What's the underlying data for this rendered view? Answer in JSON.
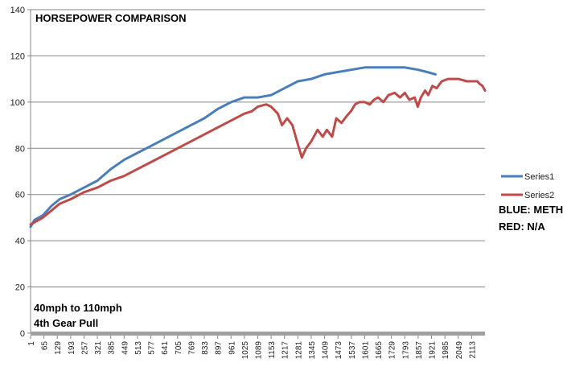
{
  "chart_data": {
    "type": "line",
    "title": "HORSEPOWER COMPARISON",
    "annotations": [
      "40mph to 110mph",
      "4th Gear Pull"
    ],
    "side_notes": [
      "BLUE: METH",
      "RED: N/A"
    ],
    "ylim": [
      0,
      140
    ],
    "y_ticks": [
      0,
      20,
      40,
      60,
      80,
      100,
      120,
      140
    ],
    "xlim": [
      1,
      2177
    ],
    "x_ticks": [
      "1",
      "65",
      "129",
      "193",
      "257",
      "321",
      "385",
      "449",
      "513",
      "577",
      "641",
      "705",
      "769",
      "833",
      "897",
      "961",
      "1025",
      "1089",
      "1153",
      "1217",
      "1281",
      "1345",
      "1409",
      "1473",
      "1537",
      "1601",
      "1665",
      "1729",
      "1793",
      "1857",
      "1921",
      "1985",
      "2049",
      "2113"
    ],
    "grid": "horizontal",
    "legend_position": "right",
    "series": [
      {
        "name": "Series1",
        "color": "#4a7ebb",
        "x": [
          1,
          20,
          60,
          100,
          140,
          193,
          257,
          321,
          385,
          449,
          513,
          577,
          641,
          705,
          769,
          833,
          897,
          961,
          1025,
          1089,
          1153,
          1217,
          1281,
          1345,
          1409,
          1473,
          1537,
          1601,
          1665,
          1729,
          1793,
          1857,
          1900,
          1940
        ],
        "values": [
          46,
          49,
          51,
          55,
          58,
          60,
          63,
          66,
          71,
          75,
          78,
          81,
          84,
          87,
          90,
          93,
          97,
          100,
          102,
          102,
          103,
          106,
          109,
          110,
          112,
          113,
          114,
          115,
          115,
          115,
          115,
          114,
          113,
          112
        ]
      },
      {
        "name": "Series2",
        "color": "#be4b48",
        "x": [
          1,
          20,
          60,
          100,
          140,
          193,
          257,
          321,
          385,
          449,
          513,
          577,
          641,
          705,
          769,
          833,
          897,
          961,
          1025,
          1060,
          1089,
          1130,
          1153,
          1185,
          1205,
          1230,
          1255,
          1280,
          1300,
          1320,
          1345,
          1375,
          1400,
          1420,
          1445,
          1465,
          1490,
          1515,
          1535,
          1555,
          1575,
          1601,
          1625,
          1645,
          1665,
          1690,
          1715,
          1745,
          1770,
          1793,
          1815,
          1840,
          1855,
          1870,
          1890,
          1905,
          1925,
          1945,
          1970,
          2000,
          2049,
          2090,
          2113,
          2140,
          2150,
          2165,
          2177
        ],
        "values": [
          47,
          48,
          50,
          53,
          56,
          58,
          61,
          63,
          66,
          68,
          71,
          74,
          77,
          80,
          83,
          86,
          89,
          92,
          95,
          96,
          98,
          99,
          98,
          95,
          90,
          93,
          90,
          82,
          76,
          80,
          83,
          88,
          85,
          88,
          85,
          93,
          91,
          94,
          96,
          99,
          100,
          100,
          99,
          101,
          102,
          100,
          103,
          104,
          102,
          104,
          101,
          102,
          98,
          102,
          105,
          103,
          107,
          106,
          109,
          110,
          110,
          109,
          109,
          109,
          108,
          107,
          105
        ]
      }
    ]
  }
}
